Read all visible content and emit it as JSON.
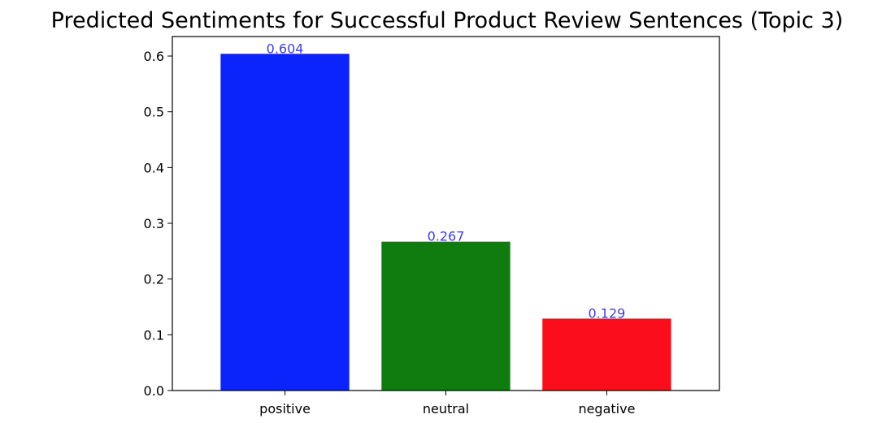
{
  "chart_data": {
    "type": "bar",
    "title": "Predicted Sentiments for Successful Product Review Sentences (Topic 3)",
    "xlabel": "",
    "ylabel": "",
    "categories": [
      "positive",
      "neutral",
      "negative"
    ],
    "values": [
      0.604,
      0.267,
      0.129
    ],
    "data_labels": [
      "0.604",
      "0.267",
      "0.129"
    ],
    "bar_colors": [
      "#0b24fb",
      "#107c10",
      "#fc0d1b"
    ],
    "data_label_color": "#3b3bf5",
    "ylim": [
      0,
      0.635
    ],
    "yticks": [
      0.0,
      0.1,
      0.2,
      0.3,
      0.4,
      0.5,
      0.6
    ],
    "ytick_labels": [
      "0.0",
      "0.1",
      "0.2",
      "0.3",
      "0.4",
      "0.5",
      "0.6"
    ],
    "grid": false,
    "legend": "none"
  }
}
